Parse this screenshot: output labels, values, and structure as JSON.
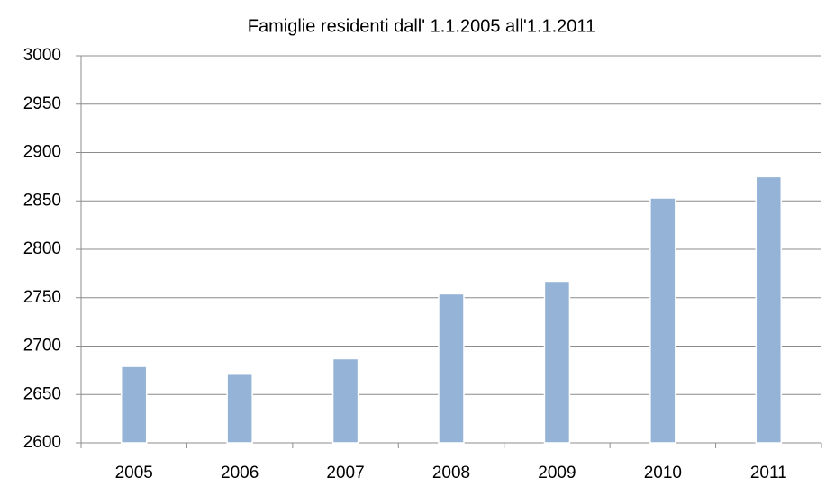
{
  "chart_data": {
    "type": "bar",
    "title": "Famiglie residenti dall' 1.1.2005 all'1.1.2011",
    "categories": [
      "2005",
      "2006",
      "2007",
      "2008",
      "2009",
      "2010",
      "2011"
    ],
    "values": [
      2679,
      2671,
      2687,
      2754,
      2767,
      2853,
      2875
    ],
    "color": "#95b3d7",
    "ylim": [
      2600,
      3000
    ],
    "yticks": [
      2600,
      2650,
      2700,
      2750,
      2800,
      2850,
      2900,
      2950,
      3000
    ],
    "grid": true
  }
}
